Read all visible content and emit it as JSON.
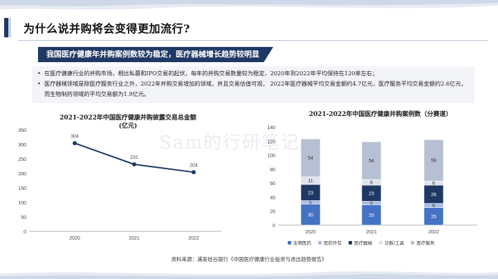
{
  "page": {
    "title": "为什么说并购将会变得更加流行?",
    "banner": "我国医疗健康年并购案例数较为稳定，医疗器械增长趋势较明显",
    "bullets": [
      "在医疗健康行业的并购市场，相比私募和IPO交易的起伏，每年的并购交易数量较为稳定，2020年到2022年平均保持在120单左右；",
      "医疗器械领域是除医疗服务行业之外，2022年并购交易增加的领域，并且交易估值可观，  2022年医疗器械平均交易金额约4.7亿元，医疗服务平均交易金额约2.6亿元，而生物制药领域的平均交易额为1.9亿元。"
    ],
    "bullet_symbol": "•",
    "watermark": "Sam的行研笔记",
    "source": "资料来源：浦发硅谷银行《中国医疗健康行业投资与退出趋势报告》"
  },
  "chart_data": [
    {
      "type": "line",
      "title": "2021-2022年中国医疗健康并购披露交易总金额",
      "subtitle": "(亿元)",
      "x": [
        "2020",
        "2021",
        "2022"
      ],
      "values": [
        304,
        231,
        204
      ],
      "y_ticks": [
        0,
        50,
        100,
        150,
        200,
        250,
        300,
        350
      ],
      "ylim": [
        0,
        350
      ],
      "color": "#1f3864"
    },
    {
      "type": "bar",
      "stacked": true,
      "title": "2021-2022年中国医疗健康并购案例数（分赛道）",
      "categories": [
        "2020",
        "2021",
        "2022"
      ],
      "y_ticks": [
        0,
        20,
        40,
        60,
        80,
        100,
        120,
        140
      ],
      "ylim": [
        0,
        140
      ],
      "series": [
        {
          "name": "生物医药",
          "color": "#4472c4",
          "values": [
            30,
            29,
            25
          ],
          "labels": [
            "30",
            "29",
            "25"
          ]
        },
        {
          "name": "医药外包",
          "color": "#a9bde3",
          "values": [
            5,
            5,
            6
          ],
          "labels": [
            "5",
            "5",
            "6"
          ]
        },
        {
          "name": "医疗器械",
          "color": "#1f3864",
          "values": [
            23,
            23,
            26
          ],
          "labels": [
            "23",
            "23",
            "26"
          ]
        },
        {
          "name": "诊断/工具",
          "color": "#dfe3ec",
          "values": [
            11,
            8,
            6
          ],
          "labels": [
            "11",
            "8",
            "6"
          ]
        },
        {
          "name": "医疗服务",
          "color": "#b7c0d2",
          "values": [
            54,
            54,
            59
          ],
          "labels": [
            "54",
            "54",
            "59"
          ]
        }
      ]
    }
  ]
}
